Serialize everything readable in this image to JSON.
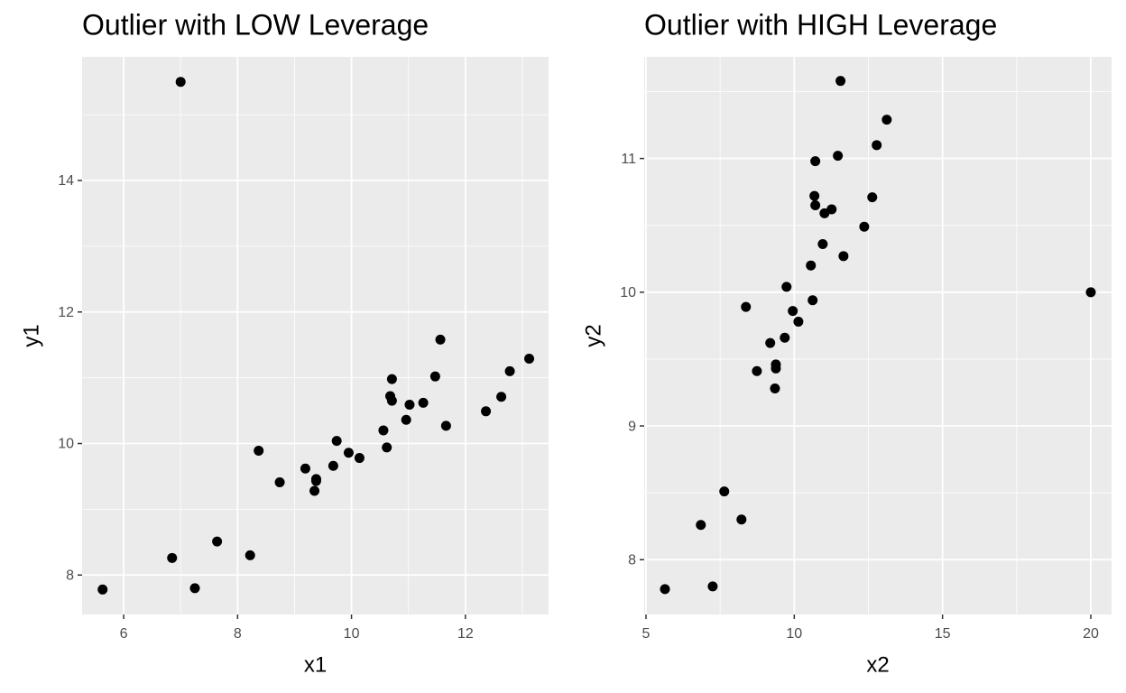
{
  "chart_data": [
    {
      "type": "scatter",
      "title": "Outlier with LOW Leverage",
      "x_label": "x1",
      "y_label": "y1",
      "color": "#000000",
      "x": [
        5.63,
        6.85,
        7.25,
        7.64,
        8.22,
        8.37,
        8.74,
        9.19,
        9.35,
        9.38,
        9.38,
        9.68,
        9.74,
        9.95,
        10.14,
        10.56,
        10.62,
        10.71,
        10.68,
        10.71,
        10.96,
        11.02,
        11.26,
        11.47,
        11.56,
        11.66,
        12.36,
        12.63,
        12.78,
        13.12,
        7.0
      ],
      "y": [
        7.78,
        8.26,
        7.8,
        8.51,
        8.3,
        9.89,
        9.41,
        9.62,
        9.28,
        9.46,
        9.43,
        9.66,
        10.04,
        9.86,
        9.78,
        10.2,
        9.94,
        10.98,
        10.72,
        10.65,
        10.36,
        10.59,
        10.62,
        11.02,
        11.58,
        10.27,
        10.49,
        10.71,
        11.1,
        11.29,
        15.5
      ],
      "xlim": [
        5.27,
        13.46
      ],
      "ylim": [
        7.4,
        15.88
      ],
      "xticks": [
        6,
        8,
        10,
        12
      ],
      "yticks": [
        8,
        10,
        12,
        14
      ],
      "grid": true
    },
    {
      "type": "scatter",
      "title": "Outlier with HIGH Leverage",
      "x_label": "x2",
      "y_label": "y2",
      "color": "#000000",
      "x": [
        5.64,
        6.85,
        7.25,
        7.64,
        8.22,
        8.37,
        8.74,
        9.19,
        9.35,
        9.38,
        9.38,
        9.68,
        9.74,
        9.95,
        10.14,
        10.56,
        10.62,
        10.71,
        10.68,
        10.71,
        10.96,
        11.02,
        11.26,
        11.47,
        11.56,
        11.66,
        12.36,
        12.63,
        12.78,
        13.12,
        20
      ],
      "y": [
        7.78,
        8.26,
        7.8,
        8.51,
        8.3,
        9.89,
        9.41,
        9.62,
        9.28,
        9.46,
        9.43,
        9.66,
        10.04,
        9.86,
        9.78,
        10.2,
        9.94,
        10.98,
        10.72,
        10.65,
        10.36,
        10.59,
        10.62,
        11.02,
        11.58,
        10.27,
        10.49,
        10.71,
        11.1,
        11.29,
        10
      ],
      "xlim": [
        4.94,
        20.7
      ],
      "ylim": [
        7.59,
        11.76
      ],
      "xticks": [
        5,
        10,
        15,
        20
      ],
      "yticks": [
        8,
        9,
        10,
        11
      ],
      "grid": true
    }
  ]
}
